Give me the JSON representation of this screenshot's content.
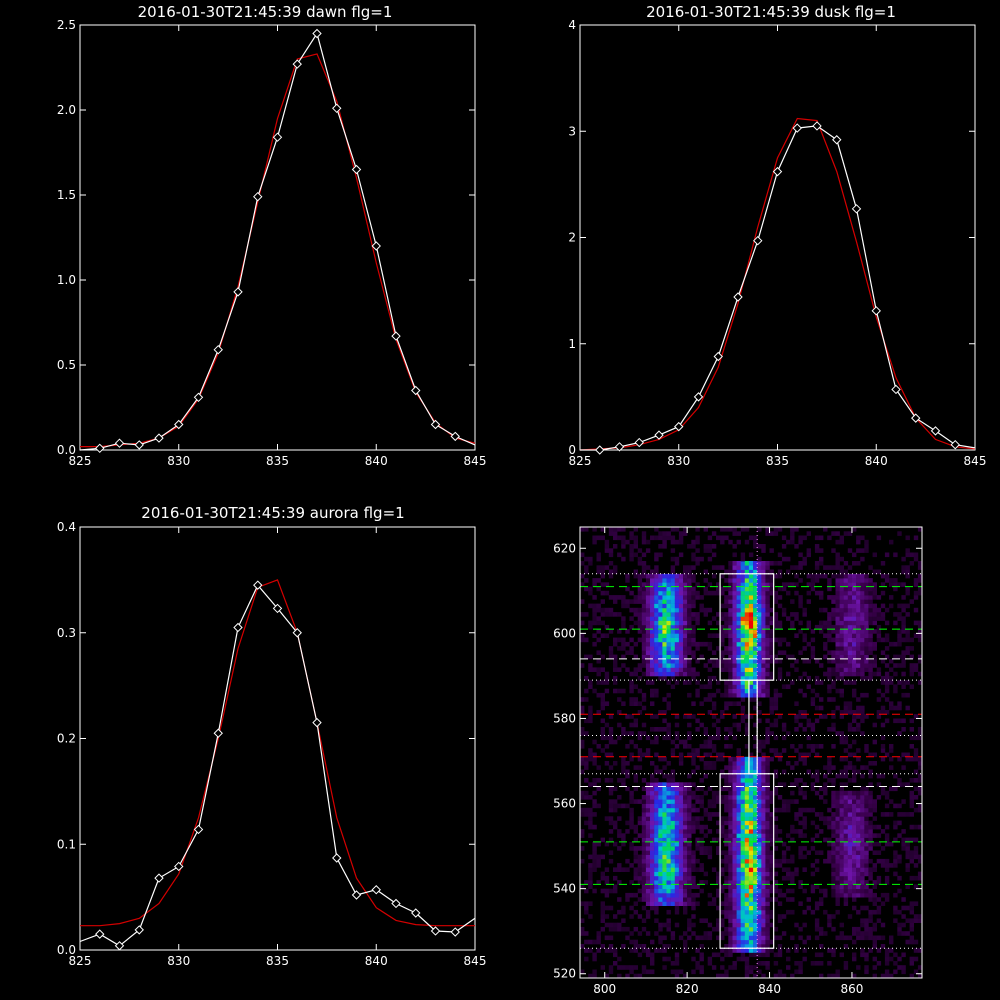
{
  "chart_data": [
    {
      "type": "line",
      "title": "2016-01-30T21:45:39 dawn flg=1",
      "xlim": [
        825,
        845
      ],
      "ylim": [
        0,
        2.5
      ],
      "xticks": [
        825,
        830,
        835,
        840,
        845
      ],
      "yticks": [
        "0.0",
        "0.5",
        "1.0",
        "1.5",
        "2.0",
        "2.5"
      ],
      "series": [
        {
          "style": "data",
          "color": "#ffffff",
          "x": [
            825,
            826,
            827,
            828,
            829,
            830,
            831,
            832,
            833,
            834,
            835,
            836,
            837,
            838,
            839,
            840,
            841,
            842,
            843,
            844,
            845
          ],
          "y": [
            0.0,
            0.01,
            0.04,
            0.03,
            0.07,
            0.15,
            0.31,
            0.59,
            0.93,
            1.49,
            1.84,
            2.27,
            2.45,
            2.01,
            1.65,
            1.2,
            0.67,
            0.35,
            0.15,
            0.08,
            0.03
          ]
        },
        {
          "style": "fit",
          "color": "#d40000",
          "x": [
            825,
            826,
            827,
            828,
            829,
            830,
            831,
            832,
            833,
            834,
            835,
            836,
            837,
            838,
            839,
            840,
            841,
            842,
            843,
            844,
            845
          ],
          "y": [
            0.02,
            0.02,
            0.03,
            0.04,
            0.07,
            0.14,
            0.3,
            0.57,
            0.96,
            1.46,
            1.95,
            2.3,
            2.33,
            2.05,
            1.6,
            1.1,
            0.65,
            0.34,
            0.16,
            0.07,
            0.04
          ]
        }
      ]
    },
    {
      "type": "line",
      "title": "2016-01-30T21:45:39 dusk flg=1",
      "xlim": [
        825,
        845
      ],
      "ylim": [
        0,
        4
      ],
      "xticks": [
        825,
        830,
        835,
        840,
        845
      ],
      "yticks": [
        "0",
        "1",
        "2",
        "3",
        "4"
      ],
      "series": [
        {
          "style": "data",
          "color": "#ffffff",
          "x": [
            825,
            826,
            827,
            828,
            829,
            830,
            831,
            832,
            833,
            834,
            835,
            836,
            837,
            838,
            839,
            840,
            841,
            842,
            843,
            844,
            845
          ],
          "y": [
            0.0,
            0.0,
            0.03,
            0.07,
            0.14,
            0.22,
            0.5,
            0.88,
            1.44,
            1.97,
            2.62,
            3.03,
            3.05,
            2.92,
            2.27,
            1.31,
            0.57,
            0.3,
            0.18,
            0.05,
            0.02
          ]
        },
        {
          "style": "fit",
          "color": "#d40000",
          "x": [
            825,
            826,
            827,
            828,
            829,
            830,
            831,
            832,
            833,
            834,
            835,
            836,
            837,
            838,
            839,
            840,
            841,
            842,
            843,
            844,
            845
          ],
          "y": [
            0.0,
            0.01,
            0.02,
            0.05,
            0.1,
            0.19,
            0.4,
            0.78,
            1.38,
            2.1,
            2.75,
            3.12,
            3.1,
            2.62,
            1.96,
            1.25,
            0.68,
            0.3,
            0.1,
            0.03,
            0.01
          ]
        }
      ]
    },
    {
      "type": "line",
      "title": "2016-01-30T21:45:39 aurora flg=1",
      "xlim": [
        825,
        845
      ],
      "ylim": [
        0,
        0.4
      ],
      "xticks": [
        825,
        830,
        835,
        840,
        845
      ],
      "yticks": [
        "0.0",
        "0.1",
        "0.2",
        "0.3",
        "0.4"
      ],
      "series": [
        {
          "style": "data",
          "color": "#ffffff",
          "x": [
            825,
            826,
            827,
            828,
            829,
            830,
            831,
            832,
            833,
            834,
            835,
            836,
            837,
            838,
            839,
            840,
            841,
            842,
            843,
            844,
            845
          ],
          "y": [
            0.008,
            0.015,
            0.004,
            0.019,
            0.068,
            0.079,
            0.114,
            0.205,
            0.305,
            0.345,
            0.323,
            0.3,
            0.215,
            0.087,
            0.052,
            0.057,
            0.044,
            0.035,
            0.018,
            0.017,
            0.03
          ]
        },
        {
          "style": "fit",
          "color": "#d40000",
          "x": [
            825,
            826,
            827,
            828,
            829,
            830,
            831,
            832,
            833,
            834,
            835,
            836,
            837,
            838,
            839,
            840,
            841,
            842,
            843,
            844,
            845
          ],
          "y": [
            0.023,
            0.023,
            0.025,
            0.03,
            0.044,
            0.072,
            0.125,
            0.2,
            0.285,
            0.343,
            0.35,
            0.3,
            0.215,
            0.125,
            0.068,
            0.04,
            0.028,
            0.024,
            0.023,
            0.023,
            0.023
          ]
        }
      ]
    },
    {
      "type": "heatmap",
      "title": "",
      "xlim": [
        794,
        877
      ],
      "ylim": [
        519,
        625
      ],
      "xticks": [
        800,
        820,
        840,
        860
      ],
      "yticks": [
        520,
        540,
        560,
        580,
        600,
        620
      ],
      "columns": [
        {
          "x": 815,
          "width": 5,
          "y_ranges": [
            [
              590,
              613
            ],
            [
              536,
              564
            ]
          ]
        },
        {
          "x": 835,
          "width": 4,
          "y_ranges": [
            [
              585,
              616
            ],
            [
              525,
              570
            ]
          ]
        },
        {
          "x": 860,
          "width": 5,
          "y_ranges": [
            [
              590,
              613
            ],
            [
              538,
              562
            ]
          ]
        }
      ],
      "peaks": [
        [
          834,
          602
        ],
        [
          836,
          600
        ],
        [
          837,
          604
        ],
        [
          835,
          546
        ],
        [
          836,
          543
        ],
        [
          814,
          602
        ],
        [
          815,
          544
        ]
      ],
      "boxes": [
        [
          828,
          589,
          841,
          614
        ],
        [
          828,
          526,
          841,
          567
        ]
      ],
      "connector_x": [
        835,
        837
      ],
      "connector_y": [
        567,
        589
      ],
      "vline_x": 837,
      "hlines": [
        {
          "y": 611,
          "color": "#00ff00",
          "style": "dashed"
        },
        {
          "y": 601,
          "color": "#00ff00",
          "style": "dashed"
        },
        {
          "y": 594,
          "color": "#ffffff",
          "style": "dashed"
        },
        {
          "y": 581,
          "color": "#ff0000",
          "style": "dashed"
        },
        {
          "y": 571,
          "color": "#ff0000",
          "style": "dashed"
        },
        {
          "y": 564,
          "color": "#ffffff",
          "style": "dashed"
        },
        {
          "y": 551,
          "color": "#00ff00",
          "style": "dashed"
        },
        {
          "y": 541,
          "color": "#00ff00",
          "style": "dashed"
        },
        {
          "y": 614,
          "color": "#ffffff",
          "style": "dotted"
        },
        {
          "y": 589,
          "color": "#ffffff",
          "style": "dotted"
        },
        {
          "y": 576,
          "color": "#ffffff",
          "style": "dotted"
        },
        {
          "y": 567,
          "color": "#ffffff",
          "style": "dotted"
        },
        {
          "y": 526,
          "color": "#ffffff",
          "style": "dotted"
        }
      ]
    }
  ]
}
